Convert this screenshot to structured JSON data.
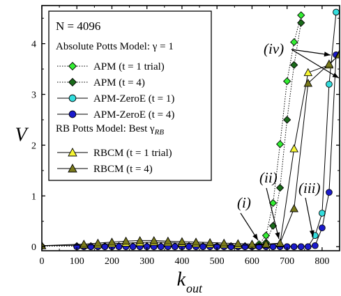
{
  "chart_data": {
    "type": "scatter",
    "xlabel": "k",
    "xlabel_sub": "out",
    "ylabel": "V",
    "xlim": [
      0,
      850
    ],
    "ylim": [
      -0.08,
      4.75
    ],
    "x_ticks": [
      0,
      100,
      200,
      300,
      400,
      500,
      600,
      700,
      800
    ],
    "y_ticks": [
      0,
      1,
      2,
      3,
      4
    ],
    "grid": false,
    "legend": {
      "placement": "top-left",
      "header_n": "N = 4096",
      "group1_title": "Absolute Potts Model:  γ = 1",
      "group2_title": "RB Potts Model:  Best γ",
      "group2_title_sub": "RB",
      "entries": [
        {
          "label": "APM (t = 1 trial)",
          "series": 0
        },
        {
          "label": "APM (t = 4)",
          "series": 1
        },
        {
          "label": "APM-ZeroE (t = 1)",
          "series": 2
        },
        {
          "label": "APM-ZeroE (t = 4)",
          "series": 3
        },
        {
          "label": "RBCM (t = 1 trial)",
          "series": 4
        },
        {
          "label": "RBCM (t = 4)",
          "series": 5
        }
      ]
    },
    "annotations": [
      {
        "text": "(i)"
      },
      {
        "text": "(ii)"
      },
      {
        "text": "(iii)"
      },
      {
        "text": "(iv)"
      }
    ],
    "series": [
      {
        "name": "APM (t = 1 trial)",
        "marker": "diamond",
        "fill": "#33ee33",
        "line": "dotted",
        "x": [
          0,
          100,
          120,
          140,
          160,
          180,
          200,
          220,
          240,
          260,
          280,
          300,
          320,
          340,
          360,
          380,
          400,
          420,
          440,
          460,
          480,
          500,
          520,
          540,
          560,
          580,
          600,
          620,
          640,
          660,
          680,
          700,
          720,
          740
        ],
        "y": [
          0.01,
          0.01,
          0.01,
          0.01,
          0.01,
          0.01,
          0.01,
          0.01,
          0.01,
          0.01,
          0.01,
          0.01,
          0.01,
          0.01,
          0.01,
          0.01,
          0.01,
          0.01,
          0.01,
          0.01,
          0.01,
          0.01,
          0.01,
          0.01,
          0.01,
          0.01,
          0.02,
          0.05,
          0.22,
          0.86,
          2.02,
          3.26,
          4.03,
          4.56
        ]
      },
      {
        "name": "APM (t = 4)",
        "marker": "diamond",
        "fill": "#1a6b1a",
        "line": "dotted",
        "x": [
          0,
          100,
          120,
          140,
          160,
          180,
          200,
          220,
          240,
          260,
          280,
          300,
          320,
          340,
          360,
          380,
          400,
          420,
          440,
          460,
          480,
          500,
          520,
          540,
          560,
          580,
          600,
          620,
          640,
          660,
          680,
          700,
          720,
          740
        ],
        "y": [
          0.01,
          0.01,
          0.01,
          0.01,
          0.01,
          0.01,
          0.01,
          0.01,
          0.01,
          0.01,
          0.01,
          0.01,
          0.01,
          0.01,
          0.01,
          0.01,
          0.01,
          0.01,
          0.01,
          0.01,
          0.01,
          0.01,
          0.01,
          0.01,
          0.01,
          0.01,
          0.01,
          0.02,
          0.08,
          0.41,
          1.16,
          2.5,
          3.58,
          4.41
        ]
      },
      {
        "name": "APM-ZeroE (t = 1)",
        "marker": "circle",
        "fill": "#33dddd",
        "line": "solid",
        "x": [
          100,
          120,
          140,
          160,
          180,
          200,
          220,
          240,
          260,
          280,
          300,
          320,
          340,
          360,
          380,
          400,
          420,
          440,
          460,
          480,
          500,
          520,
          540,
          560,
          580,
          600,
          620,
          640,
          660,
          680,
          700,
          720,
          740,
          760,
          780,
          800,
          820,
          840
        ],
        "y": [
          0,
          0,
          0,
          0,
          0,
          0,
          0,
          0,
          0,
          0,
          0,
          0,
          0,
          0,
          0,
          0,
          0,
          0,
          0,
          0,
          0,
          0,
          0,
          0,
          0,
          0,
          0,
          0,
          0,
          0,
          0,
          0,
          0,
          0,
          0.22,
          0.66,
          3.2,
          4.62
        ]
      },
      {
        "name": "APM-ZeroE (t = 4)",
        "marker": "circle",
        "fill": "#1a1acc",
        "line": "solid",
        "x": [
          100,
          120,
          140,
          160,
          180,
          200,
          220,
          240,
          260,
          280,
          300,
          320,
          340,
          360,
          380,
          400,
          420,
          440,
          460,
          480,
          500,
          520,
          540,
          560,
          580,
          600,
          620,
          640,
          660,
          680,
          700,
          720,
          740,
          760,
          780,
          800,
          820,
          840
        ],
        "y": [
          0,
          0,
          0,
          0,
          0,
          0,
          0,
          0,
          0,
          0,
          0,
          0,
          0,
          0,
          0,
          0,
          0,
          0,
          0,
          0,
          0,
          0,
          0,
          0,
          0,
          0,
          0,
          0,
          0,
          0,
          0,
          0,
          0,
          0,
          0.02,
          0.37,
          1.07,
          3.78
        ]
      },
      {
        "name": "RBCM (t = 1 trial)",
        "marker": "triangle",
        "fill": "#f5f533",
        "line": "solid",
        "x": [
          0,
          120,
          160,
          200,
          240,
          280,
          320,
          360,
          400,
          440,
          480,
          520,
          560,
          600,
          640,
          680,
          720,
          760,
          820,
          850
        ],
        "y": [
          0.02,
          0.03,
          0.04,
          0.06,
          0.07,
          0.08,
          0.09,
          0.08,
          0.07,
          0.06,
          0.05,
          0.04,
          0.03,
          0.03,
          0.04,
          0.06,
          1.93,
          3.43,
          3.58,
          3.8
        ]
      },
      {
        "name": "RBCM (t = 4)",
        "marker": "triangle",
        "fill": "#7a7a1a",
        "line": "solid",
        "x": [
          0,
          120,
          160,
          200,
          240,
          280,
          320,
          360,
          400,
          440,
          480,
          520,
          560,
          600,
          640,
          680,
          720,
          760,
          820,
          850
        ],
        "y": [
          0.02,
          0.05,
          0.07,
          0.09,
          0.11,
          0.12,
          0.12,
          0.11,
          0.1,
          0.09,
          0.08,
          0.07,
          0.06,
          0.05,
          0.05,
          0.07,
          0.75,
          3.22,
          3.6,
          3.78
        ]
      }
    ]
  }
}
